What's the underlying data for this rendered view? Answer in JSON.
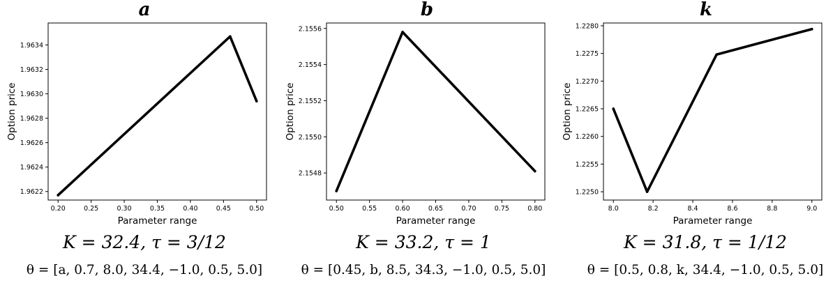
{
  "chart_data": [
    {
      "type": "line",
      "title": "a",
      "xlabel": "Parameter range",
      "ylabel": "Option price",
      "xlim": [
        0.185,
        0.515
      ],
      "ylim": [
        1.96213,
        1.96358
      ],
      "xticks": [
        0.2,
        0.25,
        0.3,
        0.35,
        0.4,
        0.45,
        0.5
      ],
      "xticklabels": [
        "0.20",
        "0.25",
        "0.30",
        "0.35",
        "0.40",
        "0.45",
        "0.50"
      ],
      "yticks": [
        1.9622,
        1.9624,
        1.9626,
        1.9628,
        1.963,
        1.9632,
        1.9634
      ],
      "yticklabels": [
        "1.9622",
        "1.9624",
        "1.9626",
        "1.9628",
        "1.9630",
        "1.9632",
        "1.9634"
      ],
      "x": [
        0.2,
        0.46,
        0.5
      ],
      "y": [
        1.96217,
        1.96347,
        1.96294
      ],
      "caption_line1": "K = 32.4, τ = 3/12",
      "caption_line2": "θ = [a, 0.7, 8.0, 34.4, −1.0, 0.5, 5.0]"
    },
    {
      "type": "line",
      "title": "b",
      "xlabel": "Parameter range",
      "ylabel": "Option price",
      "xlim": [
        0.485,
        0.815
      ],
      "ylim": [
        2.15465,
        2.15563
      ],
      "xticks": [
        0.5,
        0.55,
        0.6,
        0.65,
        0.7,
        0.75,
        0.8
      ],
      "xticklabels": [
        "0.50",
        "0.55",
        "0.60",
        "0.65",
        "0.70",
        "0.75",
        "0.80"
      ],
      "yticks": [
        2.1548,
        2.155,
        2.1552,
        2.1554,
        2.1556
      ],
      "yticklabels": [
        "2.1548",
        "2.1550",
        "2.1552",
        "2.1554",
        "2.1556"
      ],
      "x": [
        0.5,
        0.6,
        0.8
      ],
      "y": [
        2.1547,
        2.15558,
        2.15481
      ],
      "caption_line1": "K = 33.2, τ = 1",
      "caption_line2": "θ = [0.45, b, 8.5, 34.3, −1.0, 0.5, 5.0]"
    },
    {
      "type": "line",
      "title": "k",
      "xlabel": "Parameter range",
      "ylabel": "Option price",
      "xlim": [
        7.95,
        9.05
      ],
      "ylim": [
        1.22485,
        1.22805
      ],
      "xticks": [
        8.0,
        8.2,
        8.4,
        8.6,
        8.8,
        9.0
      ],
      "xticklabels": [
        "8.0",
        "8.2",
        "8.4",
        "8.6",
        "8.8",
        "9.0"
      ],
      "yticks": [
        1.225,
        1.2255,
        1.226,
        1.2265,
        1.227,
        1.2275,
        1.228
      ],
      "yticklabels": [
        "1.2250",
        "1.2255",
        "1.2260",
        "1.2265",
        "1.2270",
        "1.2275",
        "1.2280"
      ],
      "x": [
        8.0,
        8.17,
        8.52,
        9.0
      ],
      "y": [
        1.2265,
        1.225,
        1.22748,
        1.22794
      ],
      "caption_line1": "K = 31.8, τ = 1/12",
      "caption_line2": "θ = [0.5, 0.8, k, 34.4, −1.0, 0.5, 5.0]"
    }
  ]
}
